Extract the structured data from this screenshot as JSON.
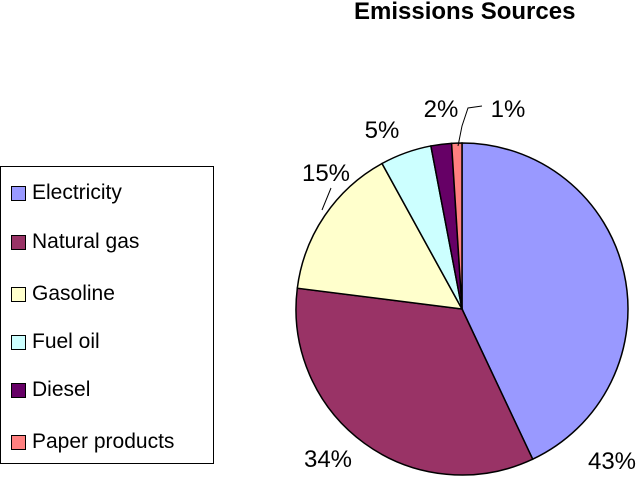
{
  "chart_data": {
    "type": "pie",
    "title": "Emissions Sources",
    "categories": [
      "Electricity",
      "Natural gas",
      "Gasoline",
      "Fuel oil",
      "Diesel",
      "Paper products"
    ],
    "values": [
      43,
      34,
      15,
      5,
      2,
      1
    ],
    "data_labels": [
      "43%",
      "34%",
      "15%",
      "5%",
      "2%",
      "1%"
    ],
    "colors": [
      "#9999FF",
      "#993366",
      "#FFFFCC",
      "#CCFFFF",
      "#660066",
      "#FF8080"
    ],
    "legend_position": "left"
  }
}
